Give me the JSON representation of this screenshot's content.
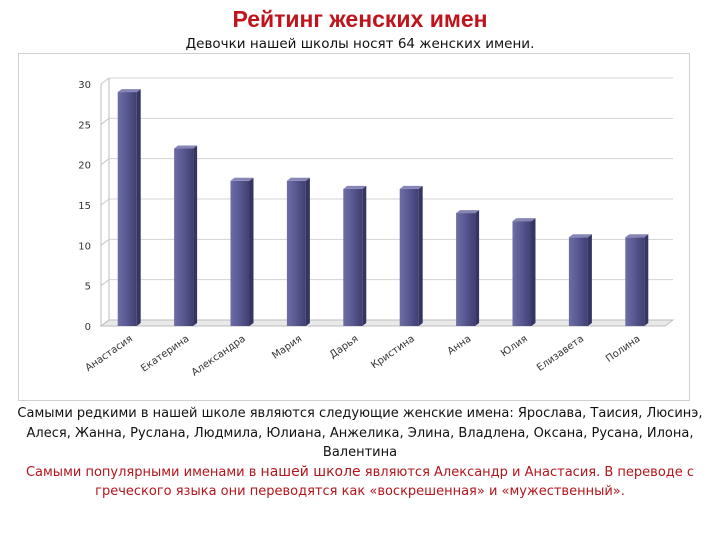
{
  "header": {
    "title": "Рейтинг женских имен",
    "subtitle": "Девочки нашей школы носят 64 женских имени."
  },
  "chart_data": {
    "type": "bar",
    "categories": [
      "Анастасия",
      "Екатерина",
      "Александра",
      "Мария",
      "Дарья",
      "Кристина",
      "Анна",
      "Юлия",
      "Елизавета",
      "Полина"
    ],
    "values": [
      29,
      22,
      18,
      18,
      17,
      17,
      14,
      13,
      11,
      11
    ],
    "ylim": [
      0,
      30
    ],
    "yticks": [
      "0",
      "5",
      "10",
      "15",
      "20",
      "25",
      "30"
    ],
    "grid": true,
    "bar_color": "#5b5b8f",
    "style": "3d"
  },
  "notes": {
    "rare": "Самыми редкими в нашей школе являются следующие женские имена: Ярослава, Таисия, Люсинэ, Алеся, Жанна, Руслана, Людмила, Юлиана, Анжелика, Элина, Владлена, Оксана, Русана, Илона, Валентина",
    "popular_a": "Самыми популярными именами в ",
    "popular_b": "нашей школе",
    "popular_c": " являются Александр и Анастасия. В переводе с греческого языка они переводятся как «воскрешенная» и «мужественный»."
  }
}
